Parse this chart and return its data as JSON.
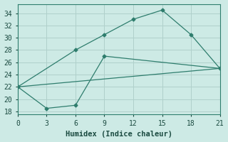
{
  "line1_x": [
    0,
    6,
    9,
    12,
    15,
    18,
    21
  ],
  "line1_y": [
    22,
    28,
    30.5,
    33,
    34.5,
    30.5,
    25
  ],
  "line2_x": [
    0,
    3,
    6,
    9,
    21
  ],
  "line2_y": [
    22,
    18.5,
    19,
    27,
    25
  ],
  "line3_x": [
    0,
    21
  ],
  "line3_y": [
    22,
    25
  ],
  "color": "#2e7d6d",
  "bg_color": "#cdeae5",
  "grid_color": "#b0d0cb",
  "xlabel": "Humidex (Indice chaleur)",
  "xlim": [
    0,
    21
  ],
  "ylim": [
    17.5,
    35.5
  ],
  "xticks": [
    0,
    3,
    6,
    9,
    12,
    15,
    18,
    21
  ],
  "yticks": [
    18,
    20,
    22,
    24,
    26,
    28,
    30,
    32,
    34
  ]
}
